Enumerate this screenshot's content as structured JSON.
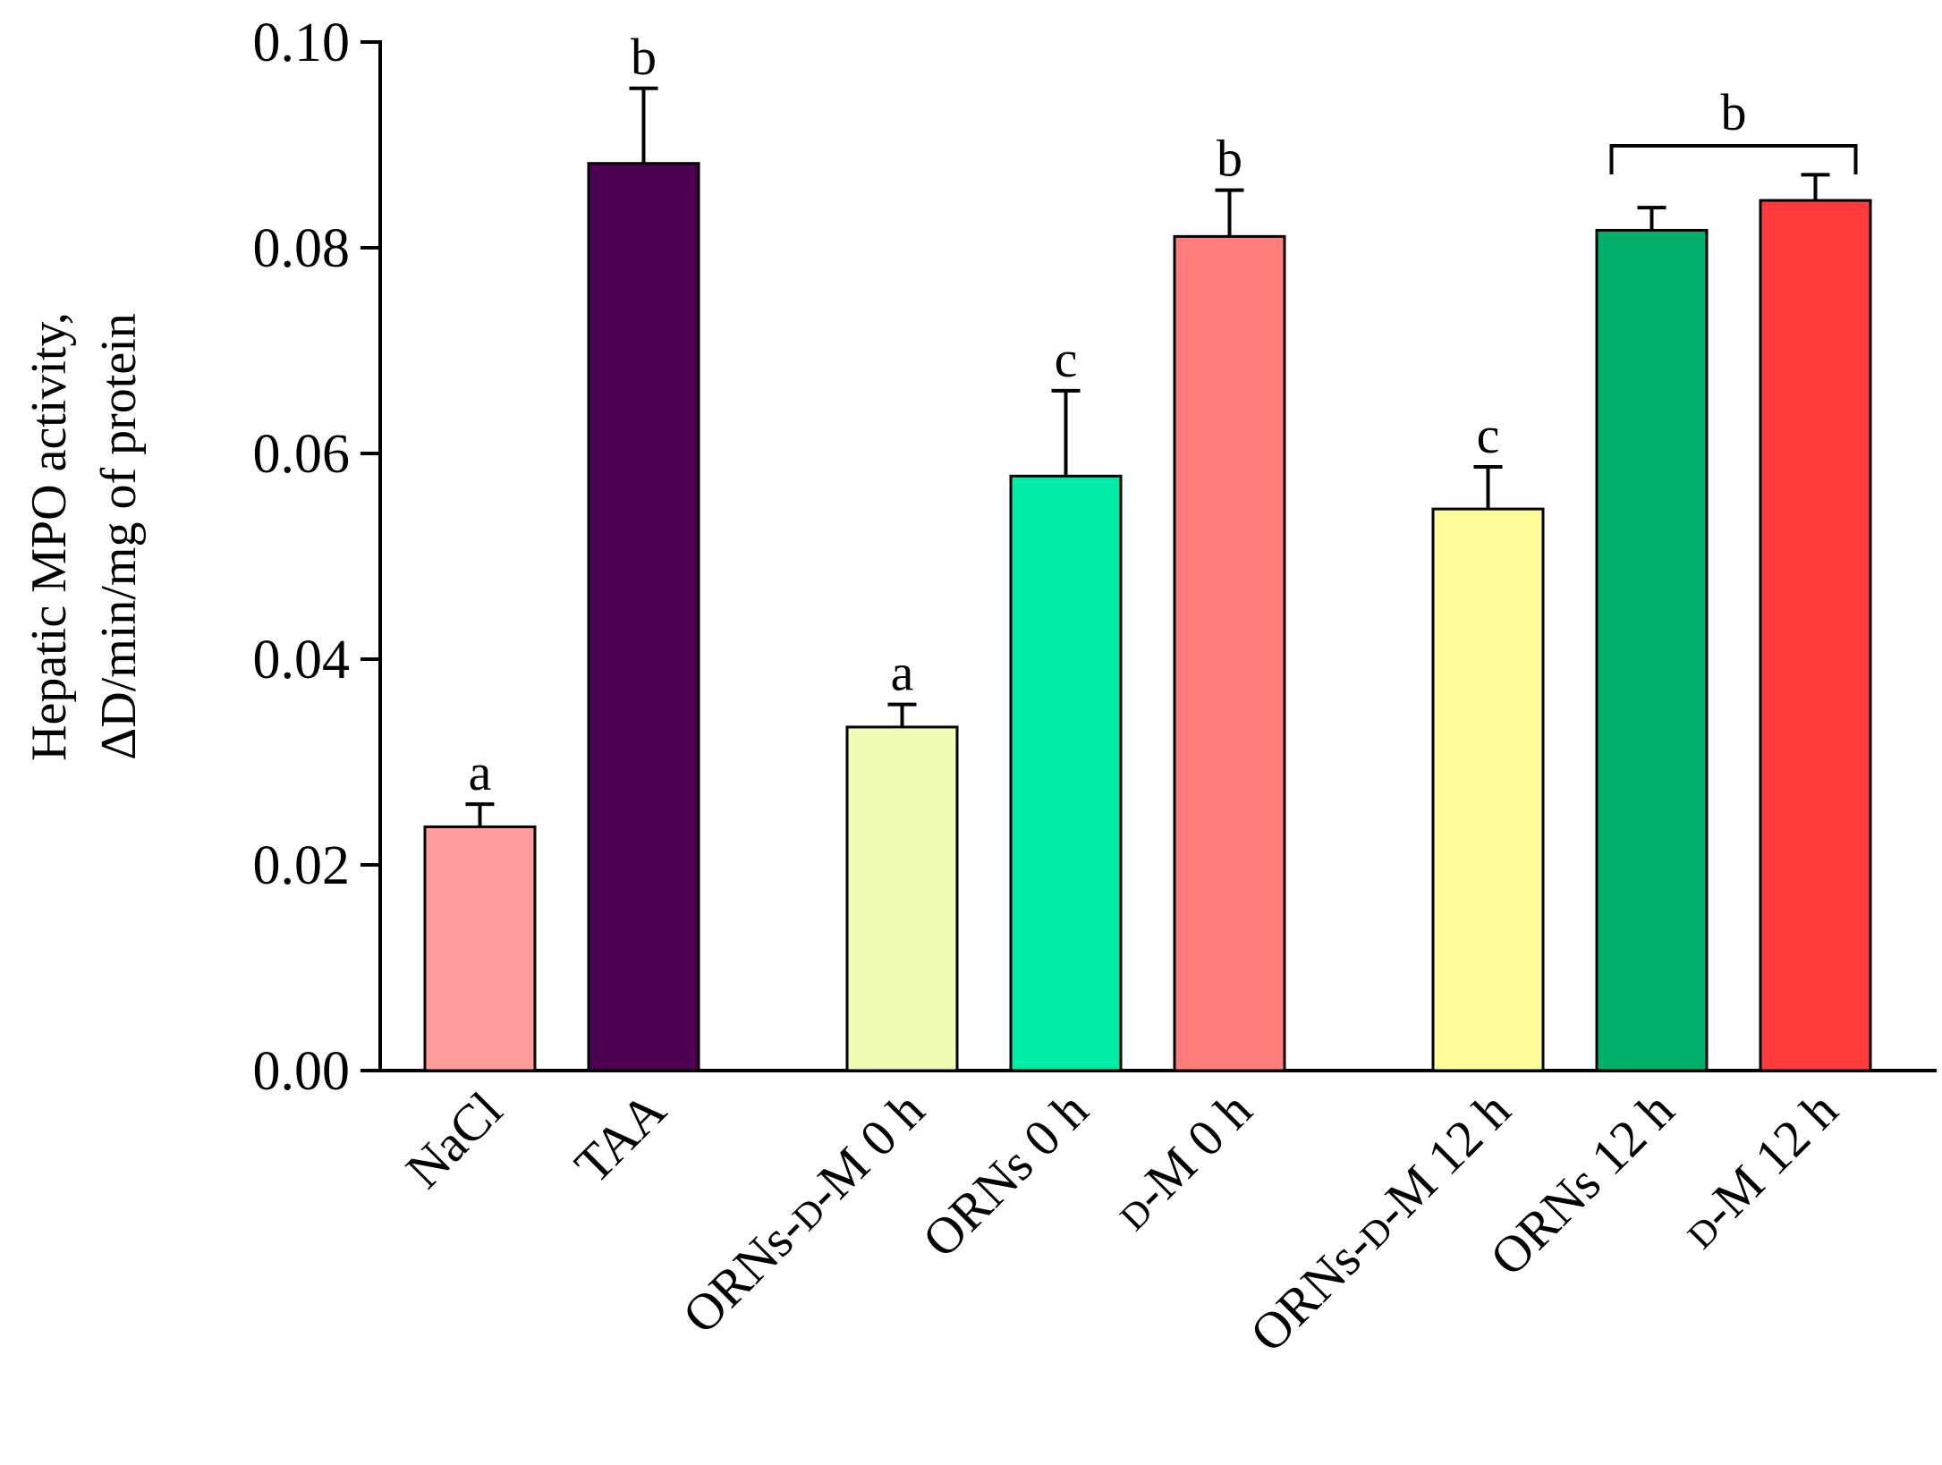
{
  "chart_data": {
    "type": "bar",
    "ylabel_lines": [
      "Hepatic MPO activity,",
      "ΔD/min/mg of protein"
    ],
    "ylim": [
      0,
      0.1
    ],
    "yticks": [
      "0.00",
      "0.02",
      "0.04",
      "0.06",
      "0.08",
      "0.10"
    ],
    "ytick_values": [
      0,
      0.02,
      0.04,
      0.06,
      0.08,
      0.1
    ],
    "groups": [
      [
        0,
        1
      ],
      [
        2,
        3,
        4
      ],
      [
        5,
        6,
        7
      ]
    ],
    "categories": [
      {
        "prefix": "",
        "small": "",
        "suffix": "NaCl"
      },
      {
        "prefix": "",
        "small": "",
        "suffix": "TAA"
      },
      {
        "prefix": "ORNs-",
        "small": "D",
        "suffix": "-M 0 h"
      },
      {
        "prefix": "",
        "small": "",
        "suffix": "ORNs 0 h"
      },
      {
        "prefix": "",
        "small": "D",
        "suffix": "-M 0 h"
      },
      {
        "prefix": "ORNs-",
        "small": "D",
        "suffix": "-M 12 h"
      },
      {
        "prefix": "",
        "small": "",
        "suffix": "ORNs 12 h"
      },
      {
        "prefix": "",
        "small": "D",
        "suffix": "-M 12 h"
      }
    ],
    "values": [
      0.0237,
      0.0882,
      0.0334,
      0.0578,
      0.0811,
      0.0546,
      0.0817,
      0.0846
    ],
    "errors": [
      0.0022,
      0.0073,
      0.0022,
      0.0083,
      0.0045,
      0.0041,
      0.0022,
      0.0025
    ],
    "colors": [
      "#FF9C9C",
      "#4B0050",
      "#F0FBB4",
      "#00EBA6",
      "#FF7E7C",
      "#FDFD9C",
      "#00B06A",
      "#FF3B3B"
    ],
    "sig_labels": [
      "a",
      "b",
      "a",
      "c",
      "b",
      "c",
      "",
      ""
    ],
    "bracket": {
      "from": 6,
      "to": 7,
      "label": "b"
    }
  }
}
